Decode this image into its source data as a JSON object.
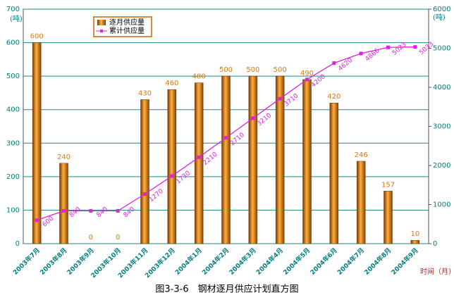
{
  "chart_data": {
    "type": "bar_line",
    "title": "图3-3-6　钢材逐月供应计划直方图",
    "y_label": "(吨)",
    "y2_label": "(吨)",
    "x_label": "时间（月）",
    "categories": [
      "2003年7月",
      "2003年8月",
      "2003年9月",
      "2003年10月",
      "2003年11月",
      "2003年12月",
      "2004年1月",
      "2004年2月",
      "2004年3月",
      "2004年4月",
      "2004年5月",
      "2004年6月",
      "2004年7月",
      "2004年8月",
      "2004年9月"
    ],
    "series": [
      {
        "name": "逐月供应量",
        "type": "bar",
        "color": "#d97a10",
        "values": [
          600,
          240,
          0,
          0,
          430,
          460,
          480,
          500,
          500,
          500,
          490,
          420,
          246,
          157,
          10
        ]
      },
      {
        "name": "累计供应量",
        "type": "line",
        "axis": "y2",
        "color": "#e020e0",
        "values": [
          600,
          840,
          840,
          840,
          1270,
          1730,
          2210,
          2710,
          3210,
          3710,
          4200,
          4620,
          4866,
          5023,
          5033
        ]
      }
    ],
    "ylim": [
      0,
      700
    ],
    "yticks": [
      0,
      100,
      200,
      300,
      400,
      500,
      600,
      700
    ],
    "y2lim": [
      0,
      6000
    ],
    "y2ticks": [
      0,
      1000,
      2000,
      3000,
      4000,
      5000,
      6000
    ],
    "grid": true,
    "legend": "top-left"
  }
}
